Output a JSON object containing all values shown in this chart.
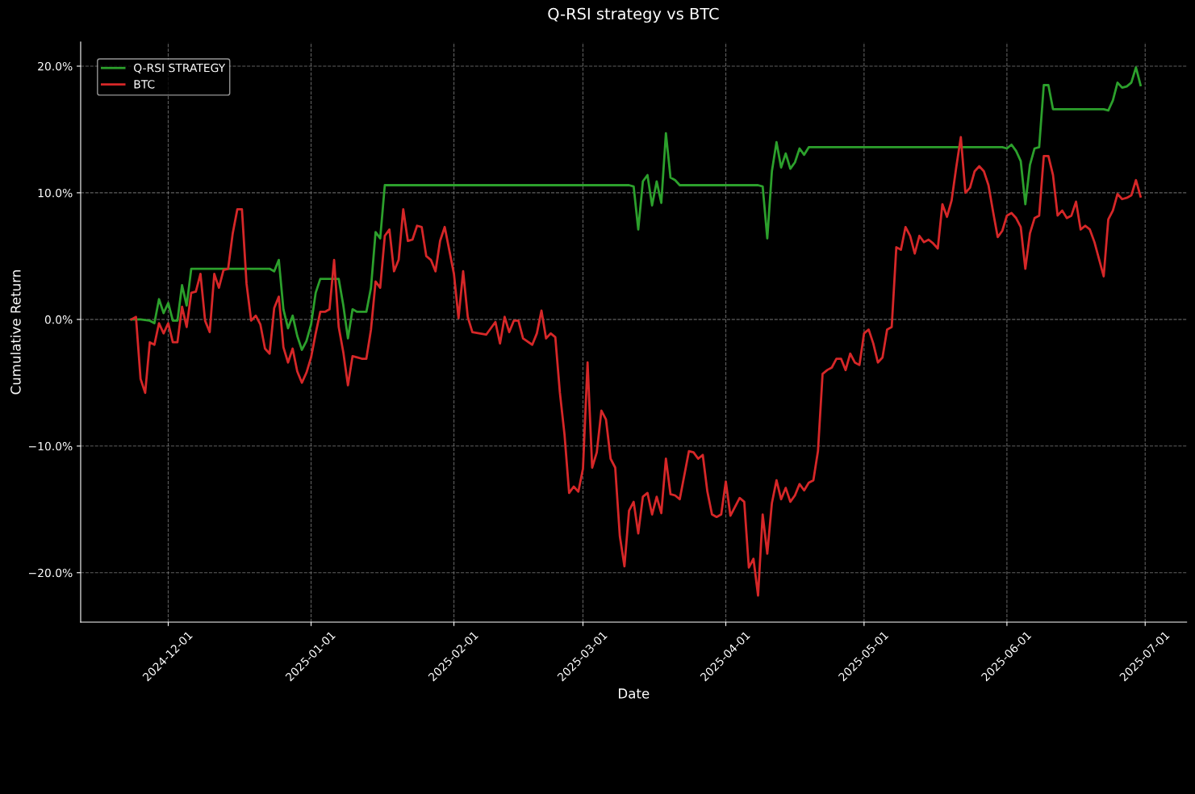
{
  "chart_data": {
    "type": "line",
    "title": "Q-RSI strategy vs BTC",
    "xlabel": "Date",
    "ylabel": "Cumulative Return",
    "xlim": [
      "2024-11-12",
      "2025-07-10"
    ],
    "xticks": [
      "2024-12-01",
      "2025-01-01",
      "2025-02-01",
      "2025-03-01",
      "2025-04-01",
      "2025-05-01",
      "2025-06-01",
      "2025-07-01"
    ],
    "ylim": [
      -23.9,
      21.9
    ],
    "yticks": [
      {
        "value": -20,
        "label": "−20.0%"
      },
      {
        "value": -10,
        "label": "−10.0%"
      },
      {
        "value": 0,
        "label": "0.0%"
      },
      {
        "value": 10,
        "label": "10.0%"
      },
      {
        "value": 20,
        "label": "20.0%"
      }
    ],
    "grid": true,
    "legend": "top left",
    "line_style": "dashed",
    "marker": "none",
    "series": [
      {
        "name": "Q-RSI STRATEGY",
        "color": "#2ca02c",
        "line_style": "solid",
        "x": [
          "2024-11-23",
          "2024-11-25",
          "2024-11-27",
          "2024-11-28",
          "2024-11-29",
          "2024-11-30",
          "2024-12-01",
          "2024-12-02",
          "2024-12-03",
          "2024-12-04",
          "2024-12-05",
          "2024-12-06",
          "2024-12-23",
          "2024-12-24",
          "2024-12-25",
          "2024-12-26",
          "2024-12-27",
          "2024-12-28",
          "2024-12-29",
          "2024-12-30",
          "2024-12-31",
          "2025-01-01",
          "2025-01-02",
          "2025-01-03",
          "2025-01-07",
          "2025-01-08",
          "2025-01-09",
          "2025-01-10",
          "2025-01-11",
          "2025-01-13",
          "2025-01-14",
          "2025-01-15",
          "2025-01-16",
          "2025-01-17",
          "2025-03-11",
          "2025-03-12",
          "2025-03-13",
          "2025-03-14",
          "2025-03-15",
          "2025-03-16",
          "2025-03-17",
          "2025-03-18",
          "2025-03-19",
          "2025-03-20",
          "2025-03-21",
          "2025-03-22",
          "2025-04-08",
          "2025-04-09",
          "2025-04-10",
          "2025-04-11",
          "2025-04-12",
          "2025-04-13",
          "2025-04-14",
          "2025-04-15",
          "2025-04-16",
          "2025-04-17",
          "2025-04-18",
          "2025-04-19",
          "2025-05-31",
          "2025-06-01",
          "2025-06-02",
          "2025-06-03",
          "2025-06-04",
          "2025-06-05",
          "2025-06-06",
          "2025-06-07",
          "2025-06-08",
          "2025-06-09",
          "2025-06-10",
          "2025-06-11",
          "2025-06-22",
          "2025-06-23",
          "2025-06-24",
          "2025-06-25",
          "2025-06-26",
          "2025-06-27",
          "2025-06-28",
          "2025-06-29",
          "2025-06-30"
        ],
        "values": [
          0.0,
          0.0,
          -0.1,
          -0.3,
          1.6,
          0.5,
          1.3,
          -0.1,
          -0.1,
          2.7,
          1.1,
          4.0,
          4.0,
          3.8,
          4.7,
          0.8,
          -0.7,
          0.3,
          -1.3,
          -2.4,
          -1.7,
          -0.4,
          2.1,
          3.2,
          3.2,
          1.1,
          -1.5,
          0.8,
          0.6,
          0.6,
          2.5,
          6.9,
          6.4,
          10.6,
          10.6,
          10.5,
          7.1,
          10.9,
          11.4,
          9.0,
          10.9,
          9.2,
          14.7,
          11.2,
          11.0,
          10.6,
          10.6,
          10.5,
          6.4,
          11.7,
          14.0,
          12.0,
          13.1,
          11.9,
          12.4,
          13.5,
          13.0,
          13.6,
          13.6,
          13.5,
          13.8,
          13.3,
          12.5,
          9.1,
          12.2,
          13.5,
          13.6,
          18.5,
          18.5,
          16.6,
          16.6,
          16.5,
          17.3,
          18.7,
          18.3,
          18.4,
          18.7,
          19.9,
          18.5
        ]
      },
      {
        "name": "BTC",
        "color": "#d62728",
        "line_style": "solid",
        "x": [
          "2024-11-23",
          "2024-11-24",
          "2024-11-25",
          "2024-11-26",
          "2024-11-27",
          "2024-11-28",
          "2024-11-29",
          "2024-11-30",
          "2024-12-01",
          "2024-12-02",
          "2024-12-03",
          "2024-12-04",
          "2024-12-05",
          "2024-12-06",
          "2024-12-07",
          "2024-12-08",
          "2024-12-09",
          "2024-12-10",
          "2024-12-11",
          "2024-12-12",
          "2024-12-13",
          "2024-12-14",
          "2024-12-15",
          "2024-12-16",
          "2024-12-17",
          "2024-12-18",
          "2024-12-19",
          "2024-12-20",
          "2024-12-21",
          "2024-12-22",
          "2024-12-23",
          "2024-12-24",
          "2024-12-25",
          "2024-12-26",
          "2024-12-27",
          "2024-12-28",
          "2024-12-29",
          "2024-12-30",
          "2024-12-31",
          "2025-01-01",
          "2025-01-02",
          "2025-01-03",
          "2025-01-04",
          "2025-01-05",
          "2025-01-06",
          "2025-01-07",
          "2025-01-08",
          "2025-01-09",
          "2025-01-10",
          "2025-01-11",
          "2025-01-12",
          "2025-01-13",
          "2025-01-14",
          "2025-01-15",
          "2025-01-16",
          "2025-01-17",
          "2025-01-18",
          "2025-01-19",
          "2025-01-20",
          "2025-01-21",
          "2025-01-22",
          "2025-01-23",
          "2025-01-24",
          "2025-01-25",
          "2025-01-26",
          "2025-01-27",
          "2025-01-28",
          "2025-01-29",
          "2025-01-30",
          "2025-02-01",
          "2025-02-02",
          "2025-02-03",
          "2025-02-04",
          "2025-02-05",
          "2025-02-08",
          "2025-02-10",
          "2025-02-11",
          "2025-02-12",
          "2025-02-13",
          "2025-02-14",
          "2025-02-15",
          "2025-02-16",
          "2025-02-18",
          "2025-02-19",
          "2025-02-20",
          "2025-02-21",
          "2025-02-22",
          "2025-02-23",
          "2025-02-24",
          "2025-02-25",
          "2025-02-26",
          "2025-02-27",
          "2025-02-28",
          "2025-03-01",
          "2025-03-02",
          "2025-03-03",
          "2025-03-04",
          "2025-03-05",
          "2025-03-06",
          "2025-03-07",
          "2025-03-08",
          "2025-03-09",
          "2025-03-10",
          "2025-03-11",
          "2025-03-12",
          "2025-03-13",
          "2025-03-14",
          "2025-03-15",
          "2025-03-16",
          "2025-03-17",
          "2025-03-18",
          "2025-03-19",
          "2025-03-20",
          "2025-03-21",
          "2025-03-22",
          "2025-03-24",
          "2025-03-25",
          "2025-03-26",
          "2025-03-27",
          "2025-03-28",
          "2025-03-29",
          "2025-03-30",
          "2025-03-31",
          "2025-04-01",
          "2025-04-02",
          "2025-04-04",
          "2025-04-05",
          "2025-04-06",
          "2025-04-07",
          "2025-04-08",
          "2025-04-09",
          "2025-04-10",
          "2025-04-11",
          "2025-04-12",
          "2025-04-13",
          "2025-04-14",
          "2025-04-15",
          "2025-04-16",
          "2025-04-17",
          "2025-04-18",
          "2025-04-19",
          "2025-04-20",
          "2025-04-21",
          "2025-04-22",
          "2025-04-23",
          "2025-04-24",
          "2025-04-25",
          "2025-04-26",
          "2025-04-27",
          "2025-04-28",
          "2025-04-29",
          "2025-04-30",
          "2025-05-01",
          "2025-05-02",
          "2025-05-03",
          "2025-05-04",
          "2025-05-05",
          "2025-05-06",
          "2025-05-07",
          "2025-05-08",
          "2025-05-09",
          "2025-05-10",
          "2025-05-11",
          "2025-05-12",
          "2025-05-13",
          "2025-05-14",
          "2025-05-15",
          "2025-05-16",
          "2025-05-17",
          "2025-05-18",
          "2025-05-19",
          "2025-05-20",
          "2025-05-21",
          "2025-05-22",
          "2025-05-23",
          "2025-05-24",
          "2025-05-25",
          "2025-05-26",
          "2025-05-27",
          "2025-05-28",
          "2025-05-29",
          "2025-05-30",
          "2025-05-31",
          "2025-06-01",
          "2025-06-02",
          "2025-06-03",
          "2025-06-04",
          "2025-06-05",
          "2025-06-06",
          "2025-06-07",
          "2025-06-08",
          "2025-06-09",
          "2025-06-10",
          "2025-06-11",
          "2025-06-12",
          "2025-06-13",
          "2025-06-14",
          "2025-06-15",
          "2025-06-16",
          "2025-06-17",
          "2025-06-18",
          "2025-06-19",
          "2025-06-20",
          "2025-06-22",
          "2025-06-23",
          "2025-06-24",
          "2025-06-25",
          "2025-06-26",
          "2025-06-27",
          "2025-06-28",
          "2025-06-29",
          "2025-06-30"
        ],
        "values": [
          0.0,
          0.2,
          -4.7,
          -5.8,
          -1.8,
          -2.0,
          -0.3,
          -1.1,
          -0.3,
          -1.8,
          -1.8,
          1.0,
          -0.6,
          2.1,
          2.2,
          3.6,
          -0.1,
          -1.0,
          3.6,
          2.5,
          3.9,
          4.0,
          6.8,
          8.7,
          8.7,
          2.8,
          -0.1,
          0.3,
          -0.4,
          -2.3,
          -2.7,
          0.9,
          1.8,
          -2.2,
          -3.4,
          -2.3,
          -4.1,
          -5.0,
          -4.2,
          -3.0,
          -1.1,
          0.6,
          0.6,
          0.8,
          4.7,
          -0.6,
          -2.6,
          -5.2,
          -2.9,
          -3.0,
          -3.1,
          -3.1,
          -0.8,
          3.0,
          2.5,
          6.6,
          7.1,
          3.8,
          4.7,
          8.7,
          6.2,
          6.3,
          7.4,
          7.3,
          5.0,
          4.7,
          3.8,
          6.2,
          7.3,
          3.6,
          0.1,
          3.8,
          0.2,
          -1.0,
          -1.2,
          -0.2,
          -1.9,
          0.2,
          -1.0,
          -0.1,
          -0.1,
          -1.5,
          -2.0,
          -1.1,
          0.7,
          -1.5,
          -1.1,
          -1.4,
          -5.8,
          -9.1,
          -13.7,
          -13.2,
          -13.6,
          -11.8,
          -3.4,
          -11.7,
          -10.5,
          -7.2,
          -7.9,
          -11.0,
          -11.7,
          -17.1,
          -19.5,
          -15.1,
          -14.4,
          -16.9,
          -14.0,
          -13.7,
          -15.4,
          -14.0,
          -15.3,
          -11.0,
          -13.8,
          -13.9,
          -14.2,
          -10.4,
          -10.5,
          -11.0,
          -10.7,
          -13.6,
          -15.4,
          -15.6,
          -15.4,
          -12.8,
          -15.5,
          -14.1,
          -14.4,
          -19.6,
          -18.9,
          -21.8,
          -15.4,
          -18.5,
          -14.5,
          -12.7,
          -14.2,
          -13.3,
          -14.4,
          -13.9,
          -13.0,
          -13.5,
          -12.9,
          -12.7,
          -10.4,
          -4.3,
          -4.0,
          -3.8,
          -3.1,
          -3.1,
          -4.0,
          -2.7,
          -3.4,
          -3.6,
          -1.1,
          -0.8,
          -1.9,
          -3.4,
          -3.0,
          -0.8,
          -0.6,
          5.7,
          5.5,
          7.3,
          6.6,
          5.2,
          6.6,
          6.1,
          6.3,
          6.0,
          5.6,
          9.1,
          8.1,
          9.4,
          12.0,
          14.4,
          10.0,
          10.4,
          11.7,
          12.1,
          11.7,
          10.6,
          8.5,
          6.5,
          7.0,
          8.2,
          8.4,
          8.0,
          7.3,
          4.0,
          6.8,
          8.0,
          8.2,
          12.9,
          12.9,
          11.4,
          8.2,
          8.6,
          8.0,
          8.2,
          9.3,
          7.1,
          7.4,
          7.1,
          6.1,
          3.4,
          7.9,
          8.6,
          9.9,
          9.5,
          9.6,
          9.8,
          11.0,
          9.7
        ]
      }
    ]
  }
}
